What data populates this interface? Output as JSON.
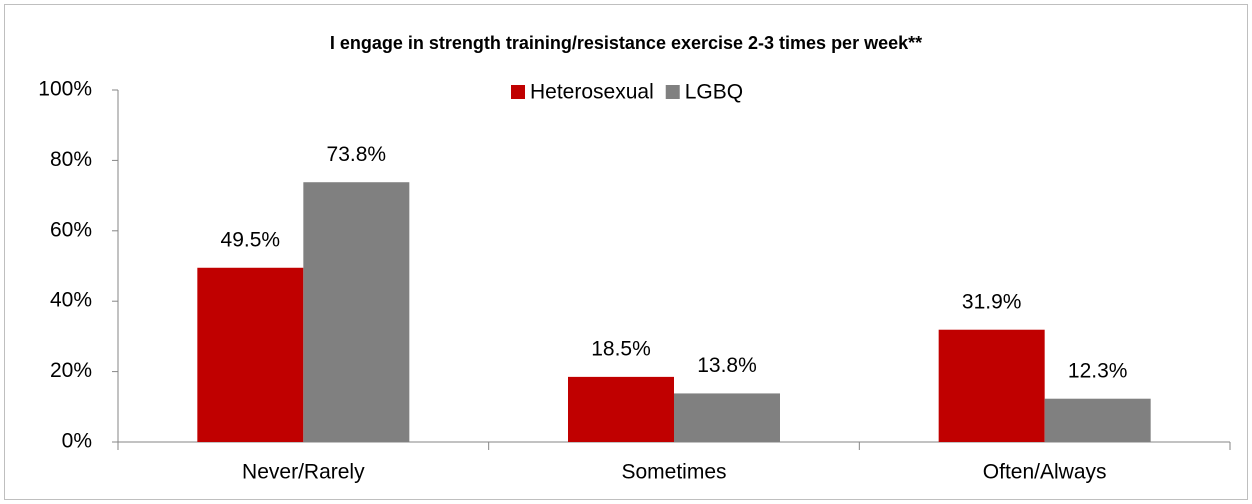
{
  "chart_data": {
    "type": "bar",
    "title": "I engage in strength training/resistance exercise 2-3 times per week**",
    "categories": [
      "Never/Rarely",
      "Sometimes",
      "Often/Always"
    ],
    "series": [
      {
        "name": "Heterosexual",
        "color": "#c00000",
        "values": [
          49.5,
          18.5,
          31.9
        ],
        "value_labels": [
          "49.5%",
          "18.5%",
          "31.9%"
        ]
      },
      {
        "name": "LGBQ",
        "color": "#808080",
        "values": [
          73.8,
          13.8,
          12.3
        ],
        "value_labels": [
          "73.8%",
          "13.8%",
          "12.3%"
        ]
      }
    ],
    "ylim": [
      0,
      100
    ],
    "yticks": [
      {
        "value": 0,
        "label": "0%"
      },
      {
        "value": 20,
        "label": "20%"
      },
      {
        "value": 40,
        "label": "40%"
      },
      {
        "value": 60,
        "label": "60%"
      },
      {
        "value": 80,
        "label": "80%"
      },
      {
        "value": 100,
        "label": "100%"
      }
    ],
    "grid": false,
    "legend": "top"
  }
}
